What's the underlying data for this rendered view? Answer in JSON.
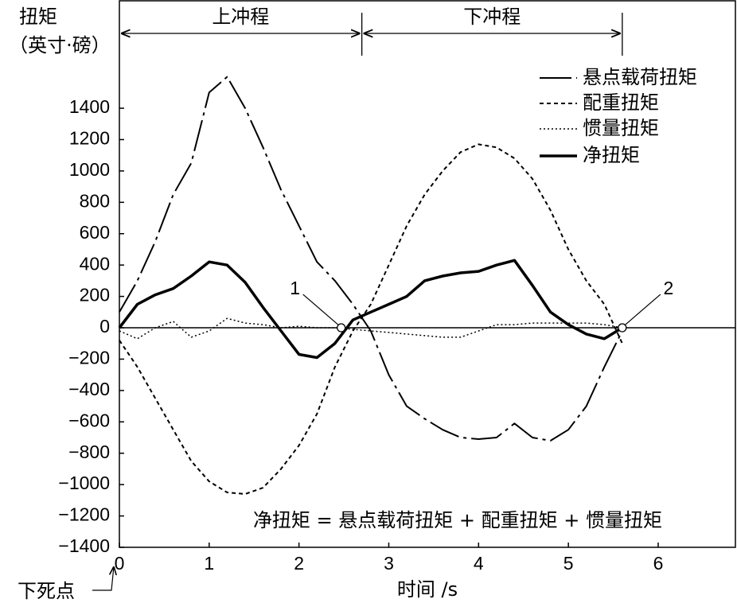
{
  "chart_data": {
    "type": "line",
    "y_label_lines": [
      "扭矩",
      "（英寸·磅）"
    ],
    "x_label": "时间 /s",
    "x_origin_note": "下死点",
    "equation": "净扭矩 = 悬点载荷扭矩 + 配重扭矩 + 惯量扭矩",
    "x": [
      0,
      0.2,
      0.4,
      0.6,
      0.8,
      1.0,
      1.2,
      1.4,
      1.6,
      1.8,
      2.0,
      2.2,
      2.4,
      2.6,
      2.8,
      3.0,
      3.2,
      3.4,
      3.6,
      3.8,
      4.0,
      4.2,
      4.4,
      4.6,
      4.8,
      5.0,
      5.2,
      5.4,
      5.6
    ],
    "series": [
      {
        "name": "悬点载荷扭矩",
        "color": "#000000",
        "dash": "dash-dot",
        "width": 2,
        "values": [
          100,
          300,
          550,
          850,
          1050,
          1500,
          1600,
          1400,
          1150,
          880,
          650,
          420,
          300,
          150,
          -20,
          -300,
          -500,
          -580,
          -650,
          -700,
          -710,
          -700,
          -610,
          -700,
          -720,
          -650,
          -500,
          -250,
          -20
        ]
      },
      {
        "name": "配重扭矩",
        "color": "#000000",
        "dash": "dash",
        "width": 2,
        "values": [
          -80,
          -250,
          -450,
          -650,
          -850,
          -980,
          -1050,
          -1060,
          -1020,
          -900,
          -750,
          -550,
          -250,
          -20,
          150,
          400,
          650,
          850,
          1000,
          1120,
          1170,
          1150,
          1080,
          950,
          750,
          500,
          300,
          150,
          -100
        ]
      },
      {
        "name": "惯量扭矩",
        "color": "#000000",
        "dash": "dot",
        "width": 1.5,
        "values": [
          -20,
          -70,
          0,
          40,
          -60,
          -20,
          60,
          30,
          20,
          0,
          10,
          0,
          0,
          -10,
          -20,
          -30,
          -40,
          -50,
          -60,
          -60,
          -20,
          20,
          20,
          30,
          30,
          30,
          30,
          20,
          0
        ]
      },
      {
        "name": "净扭矩",
        "color": "#000000",
        "dash": "solid",
        "width": 3.5,
        "values": [
          0,
          150,
          210,
          250,
          330,
          420,
          400,
          290,
          130,
          -20,
          -170,
          -190,
          -100,
          50,
          100,
          150,
          200,
          300,
          330,
          350,
          360,
          400,
          430,
          270,
          100,
          20,
          -40,
          -70,
          0
        ]
      }
    ],
    "markers": [
      {
        "label": "1",
        "x": 2.47,
        "y": 0
      },
      {
        "label": "2",
        "x": 5.6,
        "y": 0
      }
    ],
    "strokes": [
      {
        "label": "上冲程",
        "start": 0,
        "end": 2.7
      },
      {
        "label": "下冲程",
        "start": 2.7,
        "end": 5.6
      }
    ],
    "xlim": [
      0,
      6.86
    ],
    "ylim": [
      -1400,
      2080
    ],
    "xticks": [
      0,
      1,
      2,
      3,
      4,
      5,
      6
    ],
    "yticks": [
      {
        "value": -1400,
        "label": "−1400"
      },
      {
        "value": -1200,
        "label": "−1200"
      },
      {
        "value": -1000,
        "label": "−1000"
      },
      {
        "value": -800,
        "label": "−800"
      },
      {
        "value": -600,
        "label": "−600"
      },
      {
        "value": -400,
        "label": "−400"
      },
      {
        "value": -200,
        "label": "−200"
      },
      0,
      200,
      400,
      600,
      800,
      1000,
      1200,
      1400
    ],
    "zero_line": true,
    "grid": false,
    "legend": "upper-right"
  }
}
